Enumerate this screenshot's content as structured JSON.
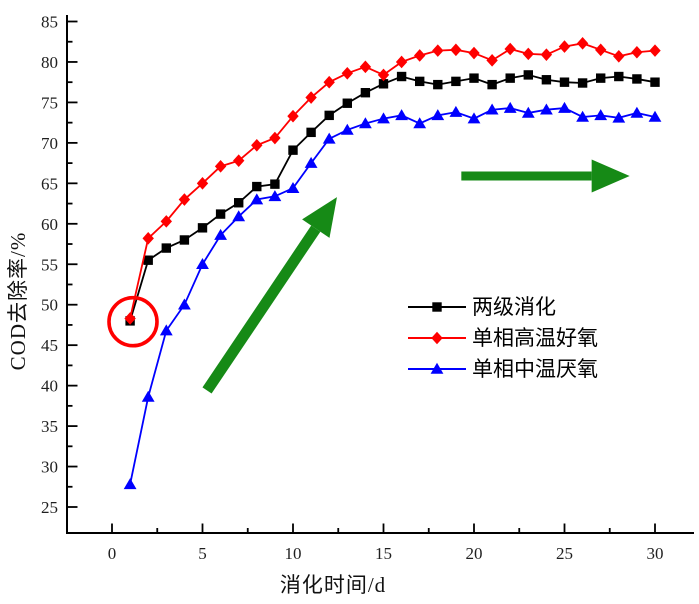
{
  "figure": {
    "background": "#ffffff"
  },
  "chart_data": {
    "type": "line",
    "title": "",
    "xlabel": "消化时间/d",
    "ylabel": "COD去除率/%",
    "xlim": [
      -2.5,
      31.2
    ],
    "ylim": [
      21.8,
      85.8
    ],
    "x_ticks": [
      0,
      5,
      10,
      15,
      20,
      25,
      30
    ],
    "y_ticks": [
      25,
      30,
      35,
      40,
      45,
      50,
      55,
      60,
      65,
      70,
      75,
      80,
      85
    ],
    "x_minor_ticks": [
      2.5,
      7.5,
      12.5,
      17.5,
      22.5,
      27.5
    ],
    "y_minor_ticks": [
      27.5,
      32.5,
      37.5,
      42.5,
      47.5,
      52.5,
      57.5,
      62.5,
      67.5,
      72.5,
      77.5,
      82.5
    ],
    "grid": "off",
    "legend_position": "inside middle-right",
    "x": [
      1,
      2,
      3,
      4,
      5,
      6,
      7,
      8,
      9,
      10,
      11,
      12,
      13,
      14,
      15,
      16,
      17,
      18,
      19,
      20,
      21,
      22,
      23,
      24,
      25,
      26,
      27,
      28,
      29,
      30
    ],
    "series": [
      {
        "name": "两级消化",
        "marker": "square",
        "color": "#000000",
        "values": [
          48.0,
          55.5,
          57.0,
          58.0,
          59.5,
          61.2,
          62.6,
          64.6,
          64.9,
          69.1,
          71.3,
          73.4,
          74.9,
          76.2,
          77.3,
          78.2,
          77.6,
          77.2,
          77.6,
          78.0,
          77.2,
          78.0,
          78.4,
          77.8,
          77.5,
          77.4,
          78.0,
          78.2,
          77.9,
          77.5
        ]
      },
      {
        "name": " 单相高温好氧",
        "marker": "diamond",
        "color": "#ff0000",
        "values": [
          48.3,
          58.2,
          60.3,
          63.0,
          65.0,
          67.1,
          67.8,
          69.7,
          70.6,
          73.3,
          75.6,
          77.5,
          78.6,
          79.4,
          78.4,
          80.0,
          80.8,
          81.4,
          81.5,
          81.1,
          80.2,
          81.6,
          81.0,
          80.9,
          81.9,
          82.3,
          81.5,
          80.7,
          81.2,
          81.4
        ]
      },
      {
        "name": "单相中温厌氧",
        "marker": "triangle",
        "color": "#0000ff",
        "values": [
          27.8,
          38.6,
          46.8,
          50.0,
          55.0,
          58.6,
          60.9,
          63.0,
          63.4,
          64.4,
          67.5,
          70.5,
          71.6,
          72.4,
          73.0,
          73.4,
          72.4,
          73.4,
          73.8,
          73.0,
          74.1,
          74.3,
          73.7,
          74.1,
          74.3,
          73.2,
          73.4,
          73.1,
          73.7,
          73.2
        ]
      }
    ],
    "annotations": {
      "start_circle": {
        "shape": "circle",
        "color": "#ff0000",
        "x": 1.16,
        "y": 47.9,
        "radius_px": 24
      },
      "arrows": [
        {
          "from_x": 5.25,
          "from_y": 39.4,
          "to_x": 12.43,
          "to_y": 63.3,
          "color": "#168a16"
        },
        {
          "from_x": 19.3,
          "from_y": 65.9,
          "to_x": 28.6,
          "to_y": 65.9,
          "color": "#168a16"
        }
      ]
    }
  }
}
